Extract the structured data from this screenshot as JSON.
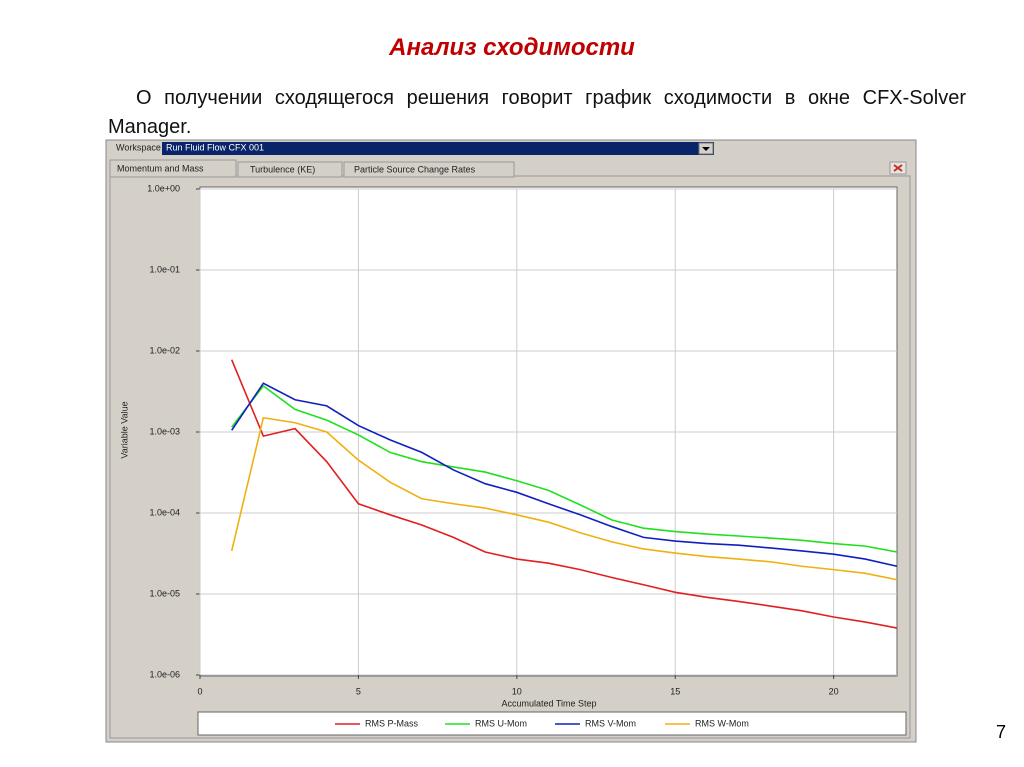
{
  "slide": {
    "title": "Анализ сходимости",
    "text": "О получении сходящегося решения говорит график сходимости в окне CFX-Solver Manager.",
    "page_number": "7"
  },
  "window": {
    "workspace_label": "Workspace",
    "workspace_value": "Run Fluid Flow CFX 001",
    "tabs": [
      "Momentum and Mass",
      "Turbulence (KE)",
      "Particle Source Change Rates"
    ]
  },
  "chart_data": {
    "type": "line",
    "x_label": "Accumulated Time Step",
    "y_label": "Variable Value",
    "yscale": "log",
    "grid": true,
    "xlim": [
      0,
      22
    ],
    "xticks": [
      0,
      5,
      10,
      15,
      20
    ],
    "ylim": [
      1e-06,
      1
    ],
    "yticks": [
      {
        "value": 1e-06,
        "label": "1.0e-06"
      },
      {
        "value": 1e-05,
        "label": "1.0e-05"
      },
      {
        "value": 0.0001,
        "label": "1.0e-04"
      },
      {
        "value": 0.001,
        "label": "1.0e-03"
      },
      {
        "value": 0.01,
        "label": "1.0e-02"
      },
      {
        "value": 0.1,
        "label": "1.0e-01"
      },
      {
        "value": 1,
        "label": "1.0e+00"
      }
    ],
    "x": [
      1,
      2,
      3,
      4,
      5,
      6,
      7,
      8,
      9,
      10,
      11,
      12,
      13,
      14,
      15,
      16,
      17,
      18,
      19,
      20,
      21,
      22
    ],
    "series": [
      {
        "name": "RMS P-Mass",
        "color": "#e02020",
        "values": [
          0.0078,
          0.00089,
          0.0011,
          0.00043,
          0.00013,
          9.5e-05,
          7.1e-05,
          5e-05,
          3.3e-05,
          2.7e-05,
          2.4e-05,
          2e-05,
          1.6e-05,
          1.3e-05,
          1.05e-05,
          9.1e-06,
          8.1e-06,
          7.1e-06,
          6.2e-06,
          5.2e-06,
          4.5e-06,
          3.8e-06
        ]
      },
      {
        "name": "RMS U-Mom",
        "color": "#20e020",
        "values": [
          0.00115,
          0.0037,
          0.0019,
          0.0014,
          0.00092,
          0.00056,
          0.00043,
          0.00037,
          0.00032,
          0.00025,
          0.00019,
          0.000126,
          8.2e-05,
          6.5e-05,
          5.9e-05,
          5.5e-05,
          5.2e-05,
          4.9e-05,
          4.6e-05,
          4.2e-05,
          3.9e-05,
          3.3e-05
        ]
      },
      {
        "name": "RMS V-Mom",
        "color": "#1020c0",
        "values": [
          0.00105,
          0.004,
          0.0025,
          0.0021,
          0.0012,
          0.0008,
          0.00056,
          0.00034,
          0.00023,
          0.00018,
          0.00013,
          9.5e-05,
          6.8e-05,
          5e-05,
          4.5e-05,
          4.2e-05,
          4e-05,
          3.7e-05,
          3.4e-05,
          3.1e-05,
          2.7e-05,
          2.2e-05
        ]
      },
      {
        "name": "RMS W-Mom",
        "color": "#f0b010",
        "values": [
          3.4e-05,
          0.0015,
          0.0013,
          0.001,
          0.00045,
          0.00024,
          0.00015,
          0.00013,
          0.000115,
          9.5e-05,
          7.7e-05,
          5.7e-05,
          4.4e-05,
          3.6e-05,
          3.2e-05,
          2.9e-05,
          2.7e-05,
          2.5e-05,
          2.2e-05,
          2e-05,
          1.8e-05,
          1.5e-05
        ]
      }
    ]
  }
}
